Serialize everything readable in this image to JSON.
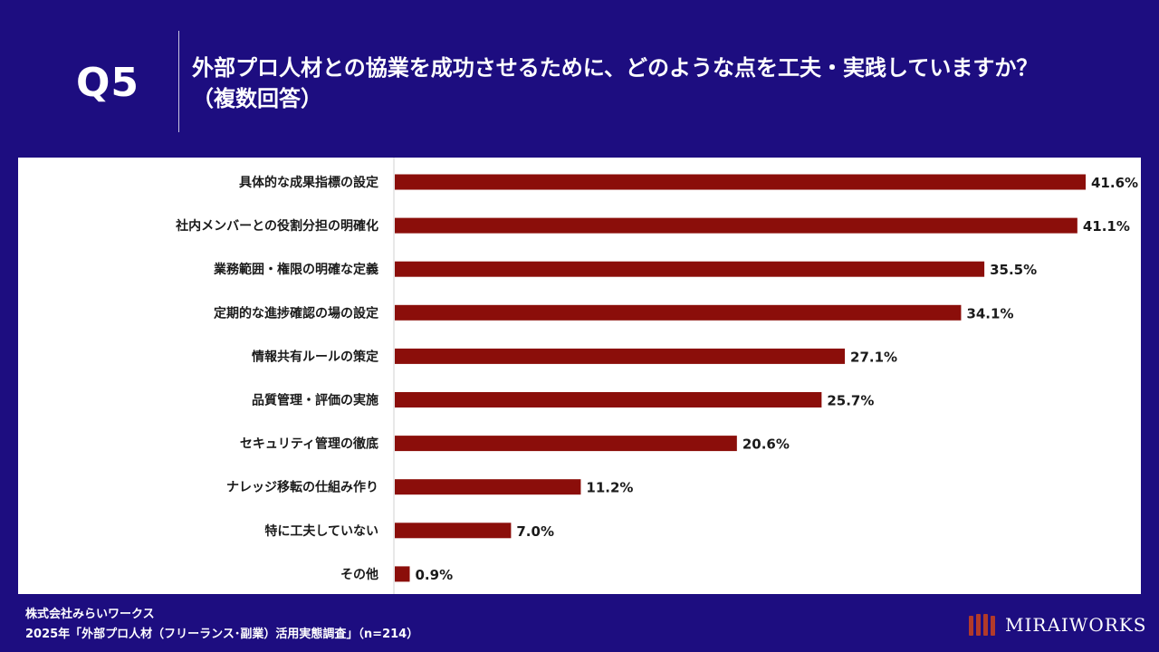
{
  "header": {
    "question_no": "Q5",
    "title_line1": "外部プロ人材との協業を成功させるために、どのような点を工夫・実践していますか？",
    "title_line2": "（複数回答）"
  },
  "colors": {
    "background": "#1d0d80",
    "bar": "#8b0e0a",
    "panel": "#ffffff",
    "logo_accent": "#b23a2a"
  },
  "chart_data": {
    "type": "bar",
    "orientation": "horizontal",
    "title": "外部プロ人材との協業を成功させるために、どのような点を工夫・実践していますか？（複数回答）",
    "categories": [
      "具体的な成果指標の設定",
      "社内メンバーとの役割分担の明確化",
      "業務範囲・権限の明確な定義",
      "定期的な進捗確認の場の設定",
      "情報共有ルールの策定",
      "品質管理・評価の実施",
      "セキュリティ管理の徹底",
      "ナレッジ移転の仕組み作り",
      "特に工夫していない",
      "その他"
    ],
    "values": [
      41.6,
      41.1,
      35.5,
      34.1,
      27.1,
      25.7,
      20.6,
      11.2,
      7.0,
      0.9
    ],
    "value_labels": [
      "41.6%",
      "41.1%",
      "35.5%",
      "34.1%",
      "27.1%",
      "25.7%",
      "20.6%",
      "11.2%",
      "7.0%",
      "0.9%"
    ],
    "unit": "%",
    "xlim": [
      0,
      41.6
    ]
  },
  "footer": {
    "company": "株式会社みらいワークス",
    "source": "2025年「外部プロ人材（フリーランス･副業）活用実態調査」（n=214）"
  },
  "logo": {
    "text": "MIRAIWORKS"
  }
}
